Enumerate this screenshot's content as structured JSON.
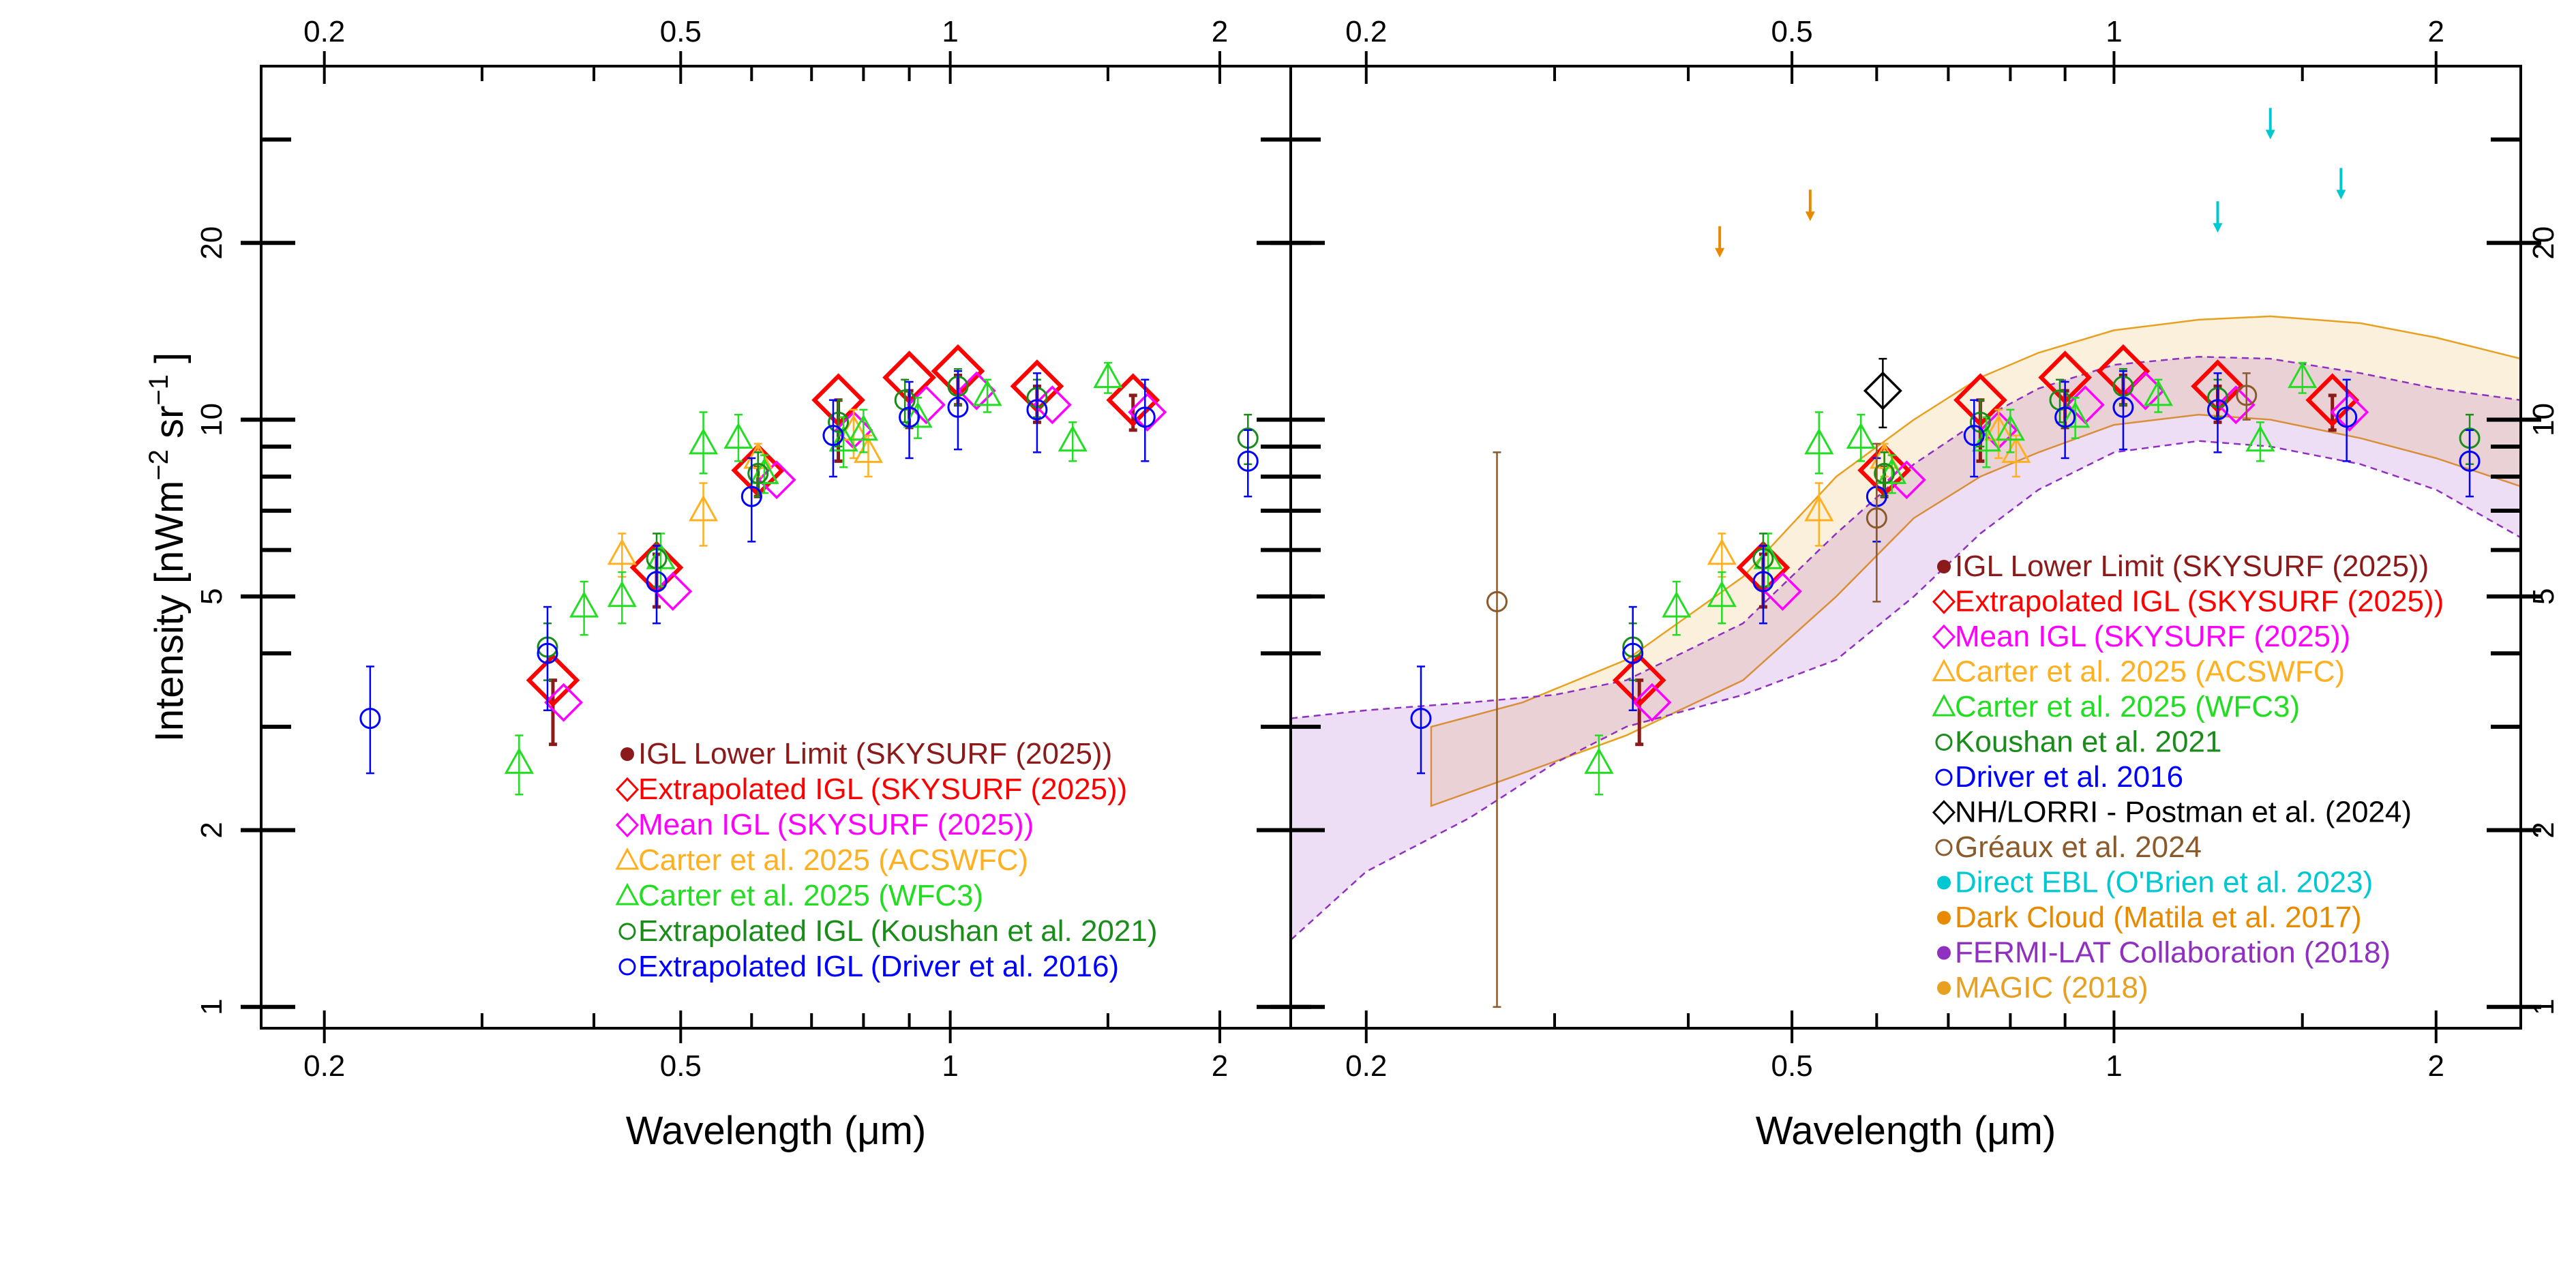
{
  "chart_data": [
    {
      "type": "scatter",
      "xlabel": "Wavelength (μm)",
      "ylabel": "Intensity [nWm",
      "ylabel_sup1": "−2",
      "ylabel_mid": " sr",
      "ylabel_sup2": "−1",
      "ylabel_end": " ]",
      "xscale": "log",
      "yscale": "log",
      "xlim": [
        0.17,
        2.4
      ],
      "ylim": [
        0.92,
        40
      ],
      "xticks": [
        {
          "v": 0.2,
          "label": "0.2"
        },
        {
          "v": 0.5,
          "label": "0.5"
        },
        {
          "v": 1,
          "label": "1"
        },
        {
          "v": 2,
          "label": "2"
        }
      ],
      "yticks": [
        {
          "v": 1,
          "label": "1"
        },
        {
          "v": 2,
          "label": "2"
        },
        {
          "v": 5,
          "label": "5"
        },
        {
          "v": 10,
          "label": "10"
        },
        {
          "v": 20,
          "label": "20"
        }
      ],
      "legend_position": "bottom-right",
      "series": [
        {
          "name": "IGL Lower Limit (SKYSURF (2025))",
          "color": "#8b1a1a",
          "marker": "filled-circle",
          "x": [
            0.36,
            0.47,
            0.61,
            0.75,
            0.9,
            1.02,
            1.25,
            1.6
          ],
          "y": [
            3.3,
            5.5,
            7.9,
            9.7,
            10.6,
            11.4,
            10.8,
            10.4
          ],
          "yerr_lo": [
            0.5,
            0.7,
            0.5,
            1.2,
            0.9,
            0.8,
            0.9,
            0.8
          ],
          "yerr_hi": [
            0.3,
            0.4,
            0.4,
            1.1,
            0.6,
            0.5,
            0.6,
            0.6
          ]
        },
        {
          "name": "Extrapolated IGL (SKYSURF (2025))",
          "color": "#ff0000",
          "marker": "open-diamond",
          "x": [
            0.36,
            0.47,
            0.61,
            0.75,
            0.9,
            1.02,
            1.25,
            1.6
          ],
          "y": [
            3.6,
            5.6,
            8.2,
            10.8,
            11.8,
            12.1,
            11.4,
            10.8
          ]
        },
        {
          "name": "Mean IGL (SKYSURF (2025))",
          "color": "#ff00ff",
          "marker": "open-diamond",
          "x": [
            0.37,
            0.49,
            0.64,
            0.78,
            0.94,
            1.07,
            1.3,
            1.66
          ],
          "y": [
            3.3,
            5.1,
            7.9,
            9.6,
            10.6,
            11.2,
            10.6,
            10.3
          ]
        },
        {
          "name": "Carter et al. 2025 (ACSWFC)",
          "color": "#ffb020",
          "marker": "open-triangle",
          "x": [
            0.43,
            0.53,
            0.61,
            0.78,
            0.81
          ],
          "y": [
            5.9,
            7.0,
            8.6,
            9.6,
            8.8
          ],
          "yerr_lo": [
            0.5,
            0.9,
            0.6,
            1.0,
            0.8
          ],
          "yerr_hi": [
            0.5,
            0.8,
            0.5,
            0.8,
            0.6
          ]
        },
        {
          "name": "Carter et al. 2025 (WFC3)",
          "color": "#22dd22",
          "marker": "open-triangle",
          "x": [
            0.33,
            0.39,
            0.43,
            0.475,
            0.53,
            0.58,
            0.62,
            0.76,
            0.8,
            0.92,
            1.1,
            1.37,
            1.5
          ],
          "y": [
            2.6,
            4.8,
            5.0,
            5.8,
            9.1,
            9.3,
            8.1,
            9.2,
            9.6,
            10.1,
            11.0,
            9.2,
            11.8
          ],
          "yerr_lo": [
            0.3,
            0.5,
            0.5,
            0.6,
            1.0,
            0.8,
            0.6,
            0.9,
            0.8,
            0.8,
            0.7,
            0.7,
            0.7
          ],
          "yerr_hi": [
            0.3,
            0.5,
            0.5,
            0.6,
            1.2,
            0.9,
            0.6,
            0.9,
            0.8,
            0.8,
            0.7,
            0.7,
            0.7
          ]
        },
        {
          "name": "Extrapolated IGL (Koushan et al. 2021)",
          "color": "#1a8c1a",
          "marker": "open-circle",
          "x": [
            0.355,
            0.47,
            0.61,
            0.75,
            0.89,
            1.02,
            1.25,
            2.15
          ],
          "y": [
            4.1,
            5.8,
            8.1,
            9.9,
            10.8,
            11.4,
            10.9,
            9.3
          ],
          "yerr_lo": [
            0.5,
            0.6,
            0.7,
            0.9,
            0.9,
            0.8,
            0.8,
            0.9
          ],
          "yerr_hi": [
            0.4,
            0.6,
            0.7,
            0.9,
            0.9,
            0.8,
            0.8,
            0.9
          ]
        },
        {
          "name": "Extrapolated IGL (Driver et al. 2016)",
          "color": "#0000ff",
          "marker": "open-circle",
          "x": [
            0.225,
            0.355,
            0.47,
            0.6,
            0.74,
            0.9,
            1.02,
            1.25,
            1.65,
            2.15
          ],
          "y": [
            3.1,
            4.0,
            5.3,
            7.4,
            9.4,
            10.1,
            10.5,
            10.4,
            10.1,
            8.5
          ],
          "yerr_lo": [
            0.6,
            0.8,
            0.8,
            1.2,
            1.4,
            1.5,
            1.6,
            1.6,
            1.6,
            1.1
          ],
          "yerr_hi": [
            0.7,
            0.8,
            0.8,
            1.2,
            1.4,
            1.5,
            1.6,
            1.6,
            1.6,
            1.1
          ]
        }
      ]
    },
    {
      "type": "scatter",
      "xlabel": "Wavelength (μm)",
      "xscale": "log",
      "yscale": "log",
      "xlim": [
        0.17,
        2.4
      ],
      "ylim": [
        0.92,
        40
      ],
      "xticks": [
        {
          "v": 0.2,
          "label": "0.2"
        },
        {
          "v": 0.5,
          "label": "0.5"
        },
        {
          "v": 1,
          "label": "1"
        },
        {
          "v": 2,
          "label": "2"
        }
      ],
      "yticks": [
        {
          "v": 1,
          "label": "1"
        },
        {
          "v": 2,
          "label": "2"
        },
        {
          "v": 5,
          "label": "5"
        },
        {
          "v": 10,
          "label": "10"
        },
        {
          "v": 20,
          "label": "20"
        }
      ],
      "legend_position": "bottom-right",
      "bands": [
        {
          "name": "MAGIC (2018)",
          "color": "#e8a020",
          "x": [
            0.23,
            0.28,
            0.35,
            0.45,
            0.55,
            0.65,
            0.75,
            0.85,
            1.0,
            1.2,
            1.4,
            1.7,
            2.0,
            2.4
          ],
          "lo": [
            2.2,
            2.5,
            2.9,
            3.6,
            5.0,
            6.8,
            8.0,
            8.8,
            9.8,
            10.2,
            10.0,
            9.3,
            8.6,
            7.7
          ],
          "hi": [
            3.0,
            3.3,
            3.9,
            5.4,
            8.0,
            10.0,
            11.8,
            13.0,
            14.2,
            14.8,
            15.0,
            14.6,
            13.8,
            12.7
          ]
        },
        {
          "name": "FERMI-LAT Collaboration (2018)",
          "color": "#9030c0",
          "x": [
            0.17,
            0.2,
            0.25,
            0.3,
            0.35,
            0.45,
            0.55,
            0.65,
            0.75,
            0.85,
            1.0,
            1.2,
            1.4,
            1.7,
            2.0,
            2.4
          ],
          "lo": [
            1.3,
            1.7,
            2.1,
            2.6,
            3.0,
            3.4,
            3.9,
            5.0,
            6.4,
            7.6,
            8.8,
            9.2,
            9.0,
            8.4,
            7.6,
            6.3
          ],
          "hi": [
            3.1,
            3.2,
            3.3,
            3.4,
            3.6,
            4.5,
            6.4,
            8.4,
            10.0,
            11.3,
            12.4,
            12.8,
            12.7,
            12.0,
            11.3,
            10.8
          ]
        }
      ],
      "series": [
        {
          "name": "IGL Lower Limit (SKYSURF (2025))",
          "color": "#8b1a1a",
          "marker": "filled-circle",
          "x": [
            0.36,
            0.47,
            0.61,
            0.75,
            0.9,
            1.02,
            1.25,
            1.6
          ],
          "y": [
            3.3,
            5.5,
            7.9,
            9.7,
            10.6,
            11.4,
            10.8,
            10.4
          ],
          "yerr_lo": [
            0.5,
            0.7,
            0.5,
            1.2,
            0.9,
            0.8,
            0.9,
            0.8
          ],
          "yerr_hi": [
            0.3,
            0.4,
            0.4,
            1.1,
            0.6,
            0.5,
            0.6,
            0.6
          ]
        },
        {
          "name": "Extrapolated IGL (SKYSURF (2025))",
          "color": "#ff0000",
          "marker": "open-diamond",
          "x": [
            0.36,
            0.47,
            0.61,
            0.75,
            0.9,
            1.02,
            1.25,
            1.6
          ],
          "y": [
            3.6,
            5.6,
            8.2,
            10.8,
            11.8,
            12.1,
            11.4,
            10.8
          ]
        },
        {
          "name": "Mean IGL (SKYSURF (2025))",
          "color": "#ff00ff",
          "marker": "open-diamond",
          "x": [
            0.37,
            0.49,
            0.64,
            0.78,
            0.94,
            1.07,
            1.3,
            1.66
          ],
          "y": [
            3.3,
            5.1,
            7.9,
            9.6,
            10.6,
            11.2,
            10.6,
            10.3
          ]
        },
        {
          "name": "Carter et al. 2025 (ACSWFC)",
          "color": "#ffb020",
          "marker": "open-triangle",
          "x": [
            0.43,
            0.53,
            0.61,
            0.78,
            0.81
          ],
          "y": [
            5.9,
            7.0,
            8.6,
            9.6,
            8.8
          ],
          "yerr_lo": [
            0.5,
            0.9,
            0.6,
            1.0,
            0.8
          ],
          "yerr_hi": [
            0.5,
            0.8,
            0.5,
            0.8,
            0.6
          ]
        },
        {
          "name": "Carter et al. 2025 (WFC3)",
          "color": "#22dd22",
          "marker": "open-triangle",
          "x": [
            0.33,
            0.39,
            0.43,
            0.475,
            0.53,
            0.58,
            0.62,
            0.76,
            0.8,
            0.92,
            1.1,
            1.37,
            1.5
          ],
          "y": [
            2.6,
            4.8,
            5.0,
            5.8,
            9.1,
            9.3,
            8.1,
            9.2,
            9.6,
            10.1,
            11.0,
            9.2,
            11.8
          ],
          "yerr_lo": [
            0.3,
            0.5,
            0.5,
            0.6,
            1.0,
            0.8,
            0.6,
            0.9,
            0.8,
            0.8,
            0.7,
            0.7,
            0.7
          ],
          "yerr_hi": [
            0.3,
            0.5,
            0.5,
            0.6,
            1.2,
            0.9,
            0.6,
            0.9,
            0.8,
            0.8,
            0.7,
            0.7,
            0.7
          ]
        },
        {
          "name": "Koushan et al. 2021",
          "color": "#1a8c1a",
          "marker": "open-circle",
          "x": [
            0.355,
            0.47,
            0.61,
            0.75,
            0.89,
            1.02,
            1.25,
            2.15
          ],
          "y": [
            4.1,
            5.8,
            8.1,
            9.9,
            10.8,
            11.4,
            10.9,
            9.3
          ],
          "yerr_lo": [
            0.5,
            0.6,
            0.7,
            0.9,
            0.9,
            0.8,
            0.8,
            0.9
          ],
          "yerr_hi": [
            0.4,
            0.6,
            0.7,
            0.9,
            0.9,
            0.8,
            0.8,
            0.9
          ]
        },
        {
          "name": "Driver et al. 2016",
          "color": "#0000ff",
          "marker": "open-circle",
          "x": [
            0.225,
            0.355,
            0.47,
            0.6,
            0.74,
            0.9,
            1.02,
            1.25,
            1.65,
            2.15
          ],
          "y": [
            3.1,
            4.0,
            5.3,
            7.4,
            9.4,
            10.1,
            10.5,
            10.4,
            10.1,
            8.5
          ],
          "yerr_lo": [
            0.6,
            0.8,
            0.8,
            1.2,
            1.4,
            1.5,
            1.6,
            1.6,
            1.6,
            1.1
          ],
          "yerr_hi": [
            0.7,
            0.8,
            0.8,
            1.2,
            1.4,
            1.5,
            1.6,
            1.6,
            1.6,
            1.1
          ]
        },
        {
          "name": "NH/LORRI - Postman et al. (2024)",
          "color": "#000000",
          "marker": "open-diamond",
          "x": [
            0.608
          ],
          "y": [
            11.2
          ],
          "yerr_lo": [
            1.5
          ],
          "yerr_hi": [
            1.5
          ]
        },
        {
          "name": "Gréaux et al. 2024",
          "color": "#8b5a2b",
          "marker": "open-circle",
          "x": [
            0.265,
            0.6,
            1.33
          ],
          "y": [
            4.9,
            6.8,
            11.0
          ],
          "yerr_lo": [
            3.9,
            1.9,
            1.0
          ],
          "yerr_hi": [
            3.9,
            2.3,
            1.0
          ]
        },
        {
          "name": "Direct EBL (O'Brien et al. 2023)",
          "color": "#00c8d2",
          "marker": "filled-circle",
          "x": [
            1.25,
            1.4,
            1.63
          ],
          "y": [
            21.5,
            31.0,
            24.5
          ],
          "upper_limit": true
        },
        {
          "name": "Dark Cloud (Matila et al. 2017)",
          "color": "#e88a00",
          "marker": "filled-circle",
          "x": [
            0.428,
            0.52
          ],
          "y": [
            19.5,
            22.5
          ],
          "upper_limit": true
        },
        {
          "name": "FERMI-LAT Collaboration (2018)",
          "color": "#9030c0",
          "marker": "filled-circle",
          "x": [],
          "y": []
        },
        {
          "name": "MAGIC (2018)",
          "color": "#e8a020",
          "marker": "filled-circle",
          "x": [],
          "y": []
        }
      ]
    }
  ]
}
